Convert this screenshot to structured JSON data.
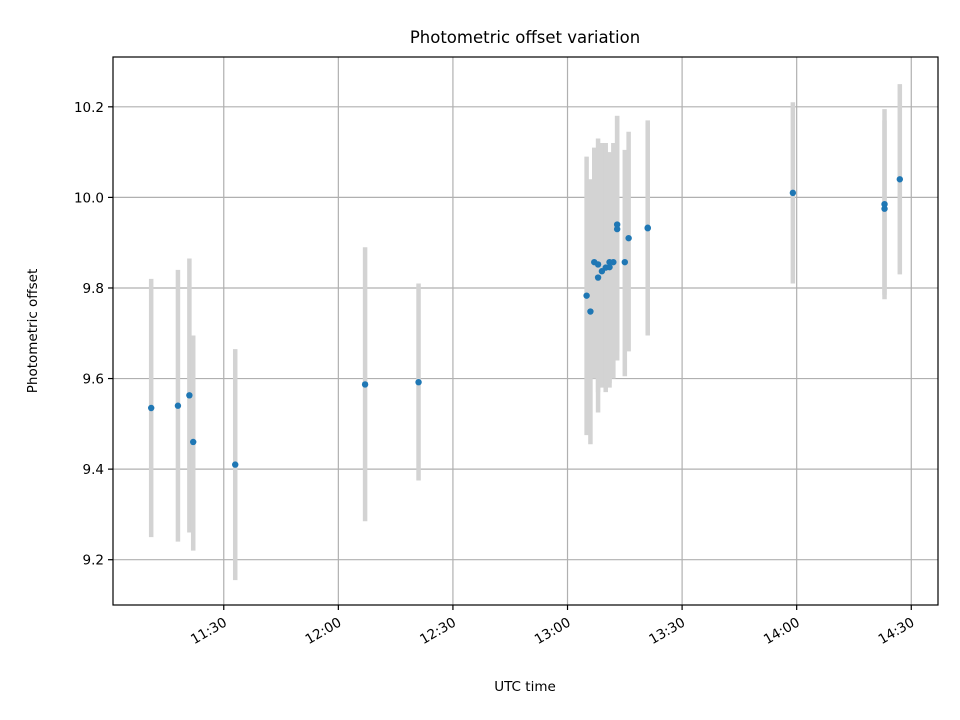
{
  "chart_data": {
    "type": "scatter",
    "title": "Photometric offset variation",
    "xlabel": "UTC time",
    "ylabel": "Photometric offset",
    "xlim": [
      "11:01",
      "14:37"
    ],
    "ylim": [
      9.1,
      10.31
    ],
    "xticks": [
      "11:30",
      "12:00",
      "12:30",
      "13:00",
      "13:30",
      "14:00",
      "14:30"
    ],
    "yticks": [
      "9.2",
      "9.4",
      "9.6",
      "9.8",
      "10.0",
      "10.2"
    ],
    "grid": true,
    "legend": "none",
    "colors": {
      "point": "#1f77b4",
      "errorbar": "#d3d3d3",
      "grid": "#b0b0b0"
    },
    "series": [
      {
        "points": [
          {
            "x": "11:11",
            "y": 9.535,
            "ylo": 9.25,
            "yhi": 9.82
          },
          {
            "x": "11:18",
            "y": 9.54,
            "ylo": 9.24,
            "yhi": 9.84
          },
          {
            "x": "11:21",
            "y": 9.563,
            "ylo": 9.26,
            "yhi": 9.865
          },
          {
            "x": "11:22",
            "y": 9.46,
            "ylo": 9.22,
            "yhi": 9.695
          },
          {
            "x": "11:33",
            "y": 9.41,
            "ylo": 9.155,
            "yhi": 9.665
          },
          {
            "x": "12:07",
            "y": 9.587,
            "ylo": 9.285,
            "yhi": 9.89
          },
          {
            "x": "12:21",
            "y": 9.592,
            "ylo": 9.375,
            "yhi": 9.81
          },
          {
            "x": "13:05",
            "y": 9.783,
            "ylo": 9.475,
            "yhi": 10.09
          },
          {
            "x": "13:06",
            "y": 9.748,
            "ylo": 9.455,
            "yhi": 10.04
          },
          {
            "x": "13:07",
            "y": 9.857,
            "ylo": 9.6,
            "yhi": 10.11
          },
          {
            "x": "13:08",
            "y": 9.823,
            "ylo": 9.57,
            "yhi": 10.075
          },
          {
            "x": "13:08",
            "y": 9.852,
            "ylo": 9.525,
            "yhi": 10.13
          },
          {
            "x": "13:09",
            "y": 9.837,
            "ylo": 9.58,
            "yhi": 10.12
          },
          {
            "x": "13:10",
            "y": 9.845,
            "ylo": 9.57,
            "yhi": 10.12
          },
          {
            "x": "13:11",
            "y": 9.857,
            "ylo": 9.58,
            "yhi": 10.1
          },
          {
            "x": "13:11",
            "y": 9.846,
            "ylo": 9.59,
            "yhi": 10.09
          },
          {
            "x": "13:12",
            "y": 9.857,
            "ylo": 9.6,
            "yhi": 10.12
          },
          {
            "x": "13:13",
            "y": 9.94,
            "ylo": 9.64,
            "yhi": 10.18
          },
          {
            "x": "13:13",
            "y": 9.93,
            "ylo": 9.66,
            "yhi": 10.18
          },
          {
            "x": "13:15",
            "y": 9.857,
            "ylo": 9.605,
            "yhi": 10.105
          },
          {
            "x": "13:16",
            "y": 9.91,
            "ylo": 9.66,
            "yhi": 10.145
          },
          {
            "x": "13:21",
            "y": 9.932,
            "ylo": 9.695,
            "yhi": 10.17
          },
          {
            "x": "13:21",
            "y": 9.933,
            "ylo": 9.7,
            "yhi": 10.165
          },
          {
            "x": "13:59",
            "y": 10.01,
            "ylo": 9.81,
            "yhi": 10.21
          },
          {
            "x": "14:23",
            "y": 9.985,
            "ylo": 9.775,
            "yhi": 10.195
          },
          {
            "x": "14:23",
            "y": 9.975,
            "ylo": 9.785,
            "yhi": 10.17
          },
          {
            "x": "14:27",
            "y": 10.04,
            "ylo": 9.83,
            "yhi": 10.25
          }
        ]
      }
    ]
  }
}
